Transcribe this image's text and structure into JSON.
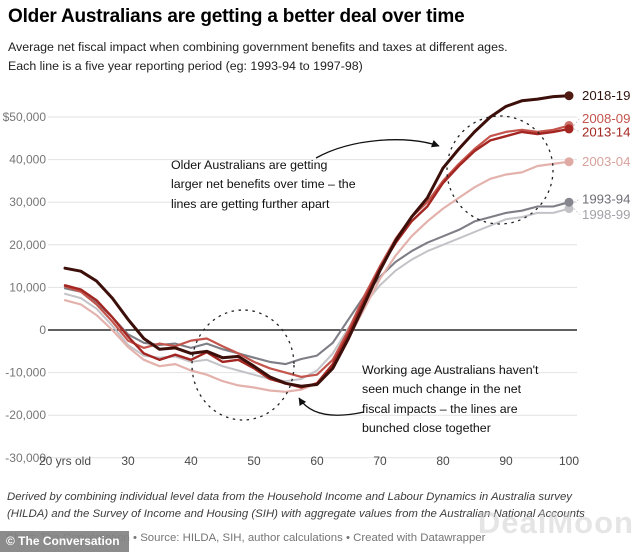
{
  "header": {
    "title": "Older Australians are getting a better deal over time",
    "subtitle": "Average net fiscal impact when combining government benefits and taxes at different ages.\nEach line is a five year reporting period (eg: 1993-94 to 1997-98)"
  },
  "chart_data": {
    "type": "line",
    "x_unit": "age (years)",
    "y_unit": "net fiscal impact ($ per year)",
    "x": [
      20,
      22.5,
      25,
      27.5,
      30,
      32.5,
      35,
      37.5,
      40,
      42.5,
      45,
      47.5,
      50,
      52.5,
      55,
      57.5,
      60,
      62.5,
      65,
      67.5,
      70,
      72.5,
      75,
      77.5,
      80,
      82.5,
      85,
      87.5,
      90,
      92.5,
      95,
      97.5,
      100
    ],
    "xlim": [
      20,
      100
    ],
    "ylim": [
      -30000,
      56000
    ],
    "grid": "horizontal",
    "legend_position": "right-end-of-lines",
    "x_ticks": [
      {
        "label": "20 yrs old",
        "age": 20
      },
      {
        "label": "30",
        "age": 30
      },
      {
        "label": "40",
        "age": 40
      },
      {
        "label": "50",
        "age": 50
      },
      {
        "label": "60",
        "age": 60
      },
      {
        "label": "70",
        "age": 70
      },
      {
        "label": "80",
        "age": 80
      },
      {
        "label": "90",
        "age": 90
      },
      {
        "label": "100",
        "age": 100
      }
    ],
    "y_ticks": [
      {
        "label": "$50,000",
        "value": 50000
      },
      {
        "label": "40,000",
        "value": 40000
      },
      {
        "label": "30,000",
        "value": 30000
      },
      {
        "label": "20,000",
        "value": 20000
      },
      {
        "label": "10,000",
        "value": 10000
      },
      {
        "label": "0",
        "value": 0
      },
      {
        "label": "-10,000",
        "value": -10000
      },
      {
        "label": "-20,000",
        "value": -20000
      },
      {
        "label": "-30,000",
        "value": -30000
      }
    ],
    "series": [
      {
        "name": "1998-99",
        "color": "#c3c3c7",
        "dot_color": "#c3c3c7",
        "label_color": "#a2a2a8",
        "values": [
          8500,
          7500,
          5000,
          1000,
          -3500,
          -6000,
          -6500,
          -6200,
          -7500,
          -7000,
          -8500,
          -9500,
          -10500,
          -11500,
          -12000,
          -11500,
          -9500,
          -5500,
          500,
          6000,
          10500,
          14000,
          16500,
          18500,
          20000,
          21500,
          23000,
          24500,
          26000,
          26500,
          27500,
          27500,
          28500
        ]
      },
      {
        "name": "1993-94",
        "color": "#7e7e86",
        "dot_color": "#86868e",
        "label_color": "#6e6e75",
        "values": [
          9800,
          9000,
          6500,
          3000,
          -1000,
          -3000,
          -3500,
          -3200,
          -4200,
          -3200,
          -4500,
          -5500,
          -6500,
          -7500,
          -8000,
          -6800,
          -6000,
          -3000,
          2500,
          8000,
          12500,
          16000,
          18500,
          20500,
          22000,
          23500,
          25500,
          26500,
          27500,
          28000,
          29000,
          29000,
          30000
        ]
      },
      {
        "name": "2003-04",
        "color": "#e4b2ac",
        "dot_color": "#e0aaa4",
        "label_color": "#d8a29c",
        "values": [
          7000,
          6000,
          3500,
          0,
          -4000,
          -7000,
          -8500,
          -8000,
          -9500,
          -10500,
          -12000,
          -13000,
          -13500,
          -14200,
          -14500,
          -14000,
          -12500,
          -8500,
          -2000,
          5000,
          12000,
          17500,
          22000,
          25500,
          28500,
          31000,
          33500,
          35500,
          36500,
          37000,
          38500,
          39000,
          39500
        ]
      },
      {
        "name": "2008-09",
        "color": "#c4554d",
        "dot_color": "#cc7169",
        "label_color": "#c4554d",
        "values": [
          10200,
          9000,
          6000,
          2000,
          -2500,
          -4200,
          -3200,
          -3800,
          -2500,
          -2000,
          -3800,
          -5500,
          -7500,
          -9000,
          -10000,
          -11000,
          -10500,
          -7000,
          0,
          8000,
          15000,
          21500,
          26500,
          30000,
          35000,
          39000,
          42500,
          45500,
          46500,
          47000,
          46500,
          47000,
          48000
        ]
      },
      {
        "name": "2013-14",
        "color": "#a32622",
        "dot_color": "#a32622",
        "label_color": "#a32622",
        "values": [
          10500,
          9500,
          7000,
          3000,
          -1500,
          -5500,
          -7000,
          -5800,
          -7000,
          -5200,
          -7500,
          -7000,
          -9000,
          -11500,
          -12500,
          -13500,
          -12500,
          -8000,
          -1000,
          7000,
          14500,
          20500,
          25500,
          29000,
          34500,
          38500,
          42000,
          44500,
          45500,
          46500,
          46000,
          46500,
          47200
        ]
      },
      {
        "name": "2018-19",
        "color": "#3c0f0a",
        "dot_color": "#4f1a12",
        "label_color": "#2e120d",
        "values": [
          14500,
          13800,
          11500,
          7500,
          2500,
          -2000,
          -4500,
          -4200,
          -5500,
          -5000,
          -6500,
          -6200,
          -8500,
          -11000,
          -12500,
          -13200,
          -12800,
          -9000,
          -2000,
          6000,
          14000,
          21000,
          26500,
          31000,
          38000,
          42500,
          46500,
          50000,
          52500,
          53800,
          54200,
          54800,
          55000
        ]
      }
    ],
    "title": "Older Australians are getting a better deal over time"
  },
  "annotations": {
    "older": {
      "text": "Older Australians are getting\nlarger net benefits over time – the\nlines are getting further apart"
    },
    "working": {
      "text": "Working age Australians haven't\nseen much change in the net\nfiscal impacts – the lines are\nbunched close together"
    }
  },
  "footer": {
    "note": "Derived by combining individual level data from the Household Income and Labour Dynamics in Australia survey\n(HILDA) and the Survey of Income and Housing (SIH) with aggregate values from the Australian National Accounts",
    "credits": "Chart: The Conversation • Source: HILDA, SIH, author calculations • Created with Datawrapper",
    "badge": "© The Conversation"
  },
  "watermark": "DealMoon"
}
